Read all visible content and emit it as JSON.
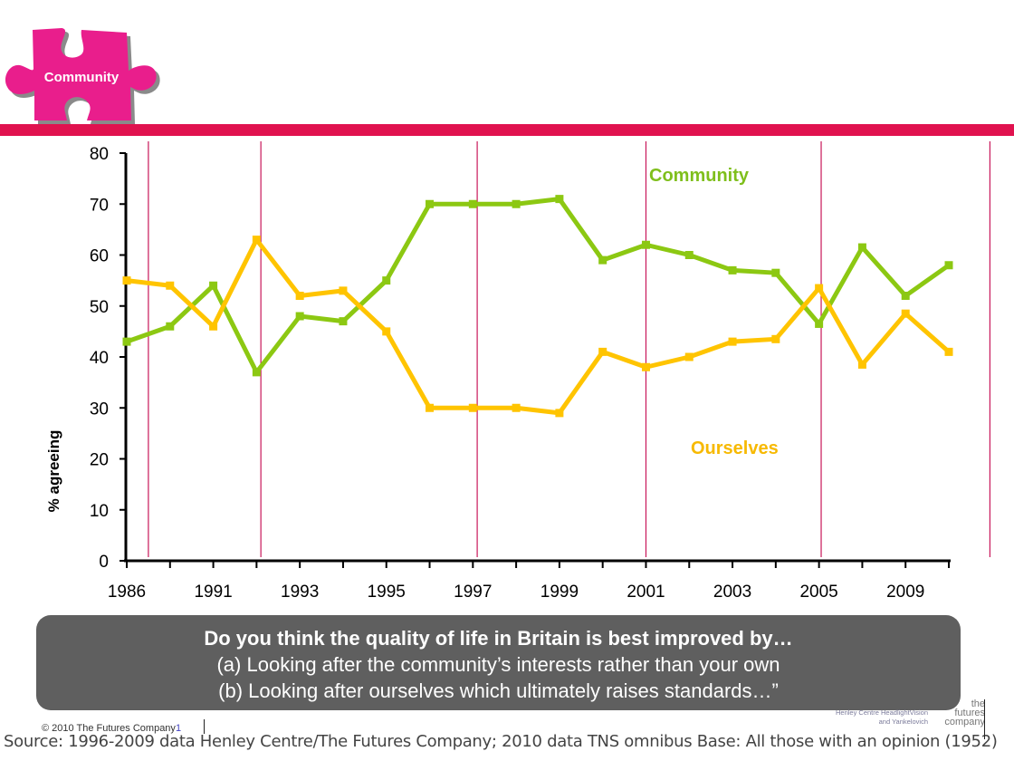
{
  "header": {
    "puzzle_label": "Community",
    "puzzle_color": "#e91e8c",
    "bar_color": "#e0124f"
  },
  "chart_data": {
    "type": "line",
    "title": "",
    "xlabel": "",
    "ylabel": "% agreeing",
    "ylim": [
      0,
      80
    ],
    "yticks": [
      0,
      10,
      20,
      30,
      40,
      50,
      60,
      70,
      80
    ],
    "x_tick_count": 20,
    "x_labels": [
      {
        "index": 0,
        "label": "1986"
      },
      {
        "index": 2,
        "label": "1991"
      },
      {
        "index": 4,
        "label": "1993"
      },
      {
        "index": 6,
        "label": "1995"
      },
      {
        "index": 8,
        "label": "1997"
      },
      {
        "index": 10,
        "label": "1999"
      },
      {
        "index": 12,
        "label": "2001"
      },
      {
        "index": 14,
        "label": "2003"
      },
      {
        "index": 16,
        "label": "2005"
      },
      {
        "index": 18,
        "label": "2009"
      }
    ],
    "grid": false,
    "marker_lines_at_index": [
      0.5,
      3.1,
      8.1,
      12.0,
      16.05,
      19.95
    ],
    "marker_line_color": "#c8175a",
    "series": [
      {
        "name": "Community",
        "color": "#8cc812",
        "label_color": "#7fbf1c",
        "values": [
          43,
          46,
          54,
          37,
          48,
          47,
          55,
          70,
          70,
          70,
          71,
          59,
          62,
          60,
          57,
          56.5,
          46.5,
          61.5,
          52,
          58
        ]
      },
      {
        "name": "Ourselves",
        "color": "#ffc400",
        "label_color": "#f7b900",
        "values": [
          55,
          54,
          46,
          63,
          52,
          53,
          45,
          30,
          30,
          30,
          29,
          41,
          38,
          40,
          43,
          43.5,
          53.5,
          38.5,
          48.5,
          41
        ]
      }
    ],
    "annotations": [
      {
        "text": "Community",
        "series": "Community"
      },
      {
        "text": "Ourselves",
        "series": "Ourselves"
      }
    ]
  },
  "question": {
    "title": "Do you think the quality of life in Britain is best improved by…",
    "option_a": "(a) Looking after the community’s interests rather than your own",
    "option_b": "(b) Looking after ourselves which ultimately raises standards…”"
  },
  "footer": {
    "copyright": "© 2010 The Futures Company",
    "page_number": "1",
    "source": "Source: 1996-2009 data Henley Centre/The Futures Company; 2010 data TNS omnibus Base: All those with an opinion (1952)",
    "hc_logo_line1": "Henley Centre HeadlightVision",
    "hc_logo_line2": "and Yankelovich",
    "tfc_logo_line1": "the",
    "tfc_logo_line2": "futures",
    "tfc_logo_line3": "company"
  }
}
